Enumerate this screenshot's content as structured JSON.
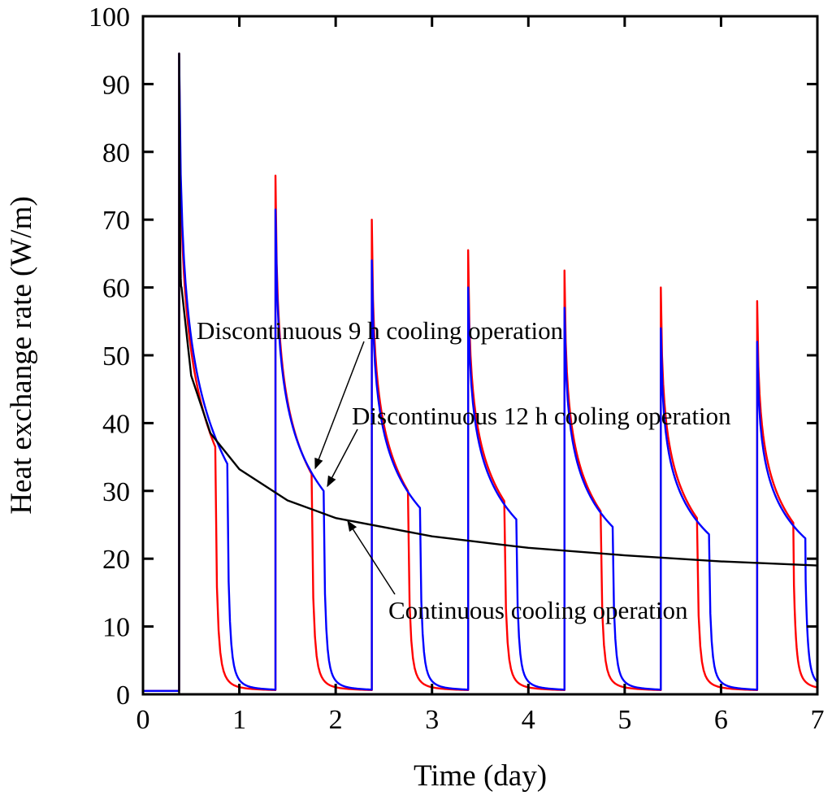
{
  "chart_data": {
    "type": "line",
    "title": "",
    "xlabel": "Time (day)",
    "ylabel": "Heat exchange rate (W/m)",
    "xlim": [
      0,
      7
    ],
    "ylim": [
      0,
      100
    ],
    "xticks": [
      0,
      1,
      2,
      3,
      4,
      5,
      6,
      7
    ],
    "yticks": [
      0,
      10,
      20,
      30,
      40,
      50,
      60,
      70,
      80,
      90,
      100
    ],
    "grid": false,
    "series": [
      {
        "name": "Continuous cooling operation",
        "color": "#000000",
        "model": "continuous",
        "start_day": 0.375,
        "peak": 94.5,
        "points": [
          [
            0.4,
            60
          ],
          [
            0.5,
            47
          ],
          [
            0.7,
            38.5
          ],
          [
            1.0,
            33.2
          ],
          [
            1.5,
            28.6
          ],
          [
            2.0,
            26.0
          ],
          [
            3.0,
            23.3
          ],
          [
            4.0,
            21.6
          ],
          [
            5.0,
            20.5
          ],
          [
            6.0,
            19.6
          ],
          [
            7.0,
            19.0
          ]
        ]
      },
      {
        "name": "Discontinuous 9 h cooling operation",
        "color": "#ff0000",
        "model": "intermittent",
        "daily_start_day": 0.375,
        "duration_day": 0.375,
        "peaks": [
          94.5,
          76.5,
          70.0,
          65.5,
          62.5,
          60.0,
          58.0
        ],
        "end_values": [
          36.5,
          32.5,
          30.0,
          28.5,
          27.0,
          26.0,
          25.3
        ],
        "baseline": 0.5
      },
      {
        "name": "Discontinuous 12 h cooling operation",
        "color": "#0000ff",
        "model": "intermittent",
        "daily_start_day": 0.375,
        "duration_day": 0.5,
        "peaks": [
          94.5,
          71.5,
          64.0,
          60.0,
          57.0,
          54.0,
          52.0
        ],
        "end_values": [
          34.0,
          30.0,
          27.5,
          25.8,
          24.7,
          23.6,
          23.0
        ],
        "baseline": 0.5
      }
    ],
    "annotations": [
      {
        "text": "Discontinuous 9 h cooling operation",
        "target_x": 1.76,
        "target_y": 32.5
      },
      {
        "text": "Discontinuous 12 h cooling operation",
        "target_x": 1.88,
        "target_y": 30.0
      },
      {
        "text": "Continuous cooling operation",
        "target_x": 2.12,
        "target_y": 26.0
      }
    ]
  }
}
